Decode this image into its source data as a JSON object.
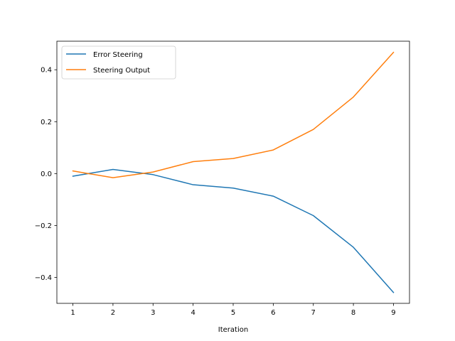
{
  "chart_data": {
    "type": "line",
    "title": "",
    "xlabel": "Iteration",
    "ylabel": "",
    "x": [
      1,
      2,
      3,
      4,
      5,
      6,
      7,
      8,
      9
    ],
    "xlim": [
      0.6,
      9.4
    ],
    "ylim": [
      -0.5,
      0.51
    ],
    "xticks": [
      1,
      2,
      3,
      4,
      5,
      6,
      7,
      8,
      9
    ],
    "xtick_labels": [
      "1",
      "2",
      "3",
      "4",
      "5",
      "6",
      "7",
      "8",
      "9"
    ],
    "yticks": [
      -0.4,
      -0.2,
      0.0,
      0.2,
      0.4
    ],
    "ytick_labels": [
      "−0.4",
      "−0.2",
      "0.0",
      "0.2",
      "0.4"
    ],
    "grid": false,
    "legend_position": "upper-left",
    "series": [
      {
        "name": "Error Steering",
        "color": "#1f77b4",
        "values": [
          -0.01,
          0.016,
          -0.004,
          -0.043,
          -0.056,
          -0.087,
          -0.162,
          -0.284,
          -0.458
        ]
      },
      {
        "name": "Steering Output",
        "color": "#ff7f0e",
        "values": [
          0.01,
          -0.016,
          0.006,
          0.046,
          0.058,
          0.091,
          0.17,
          0.295,
          0.467
        ]
      }
    ]
  }
}
